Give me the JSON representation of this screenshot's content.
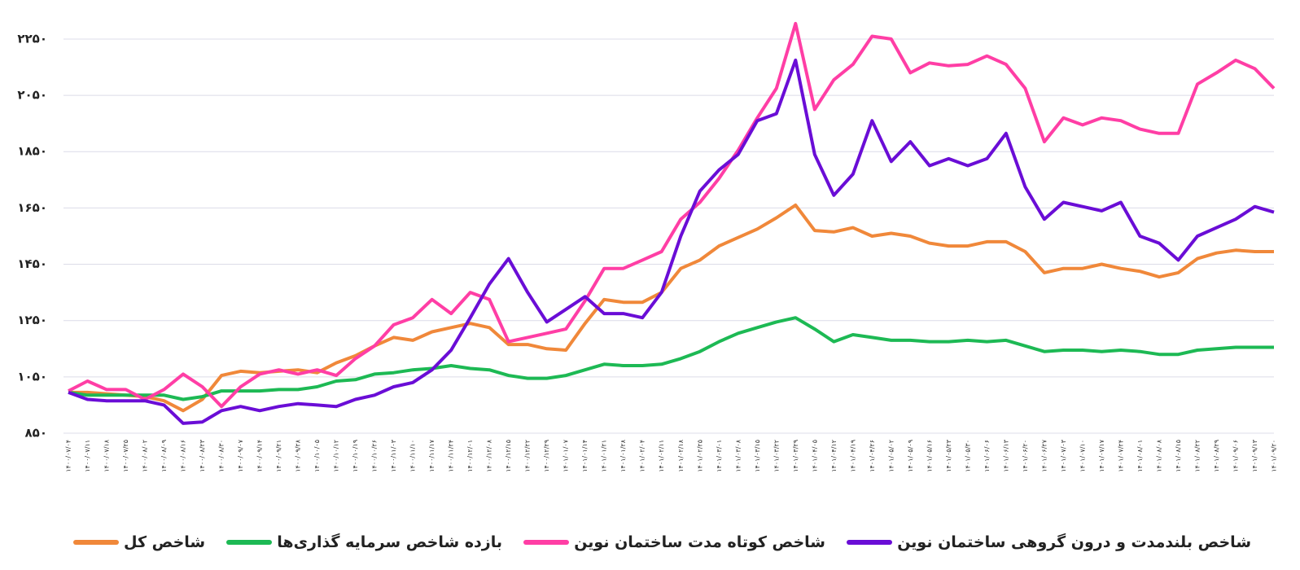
{
  "chart_data": {
    "type": "line",
    "categories": [
      "۱۴۰۰/۰۷/۰۴",
      "۱۴۰۰/۰۷/۱۱",
      "۱۴۰۰/۰۷/۱۸",
      "۱۴۰۰/۰۷/۲۵",
      "۱۴۰۰/۰۸/۰۲",
      "۱۴۰۰/۰۸/۰۹",
      "۱۴۰۰/۰۸/۱۶",
      "۱۴۰۰/۰۸/۲۳",
      "۱۴۰۰/۰۸/۳۰",
      "۱۴۰۰/۰۹/۰۷",
      "۱۴۰۰/۰۹/۱۴",
      "۱۴۰۰/۰۹/۲۱",
      "۱۴۰۰/۰۹/۲۸",
      "۱۴۰۰/۱۰/۰۵",
      "۱۴۰۰/۱۰/۱۲",
      "۱۴۰۰/۱۰/۱۹",
      "۱۴۰۰/۱۰/۲۶",
      "۱۴۰۰/۱۱/۰۳",
      "۱۴۰۰/۱۱/۱۰",
      "۱۴۰۰/۱۱/۱۷",
      "۱۴۰۰/۱۱/۲۴",
      "۱۴۰۰/۱۲/۰۱",
      "۱۴۰۰/۱۲/۰۸",
      "۱۴۰۰/۱۲/۱۵",
      "۱۴۰۰/۱۲/۲۲",
      "۱۴۰۰/۱۲/۲۹",
      "۱۴۰۱/۰۱/۰۷",
      "۱۴۰۱/۰۱/۱۴",
      "۱۴۰۱/۰۱/۲۱",
      "۱۴۰۱/۰۱/۲۸",
      "۱۴۰۱/۰۲/۰۴",
      "۱۴۰۱/۰۲/۱۱",
      "۱۴۰۱/۰۲/۱۸",
      "۱۴۰۱/۰۲/۲۵",
      "۱۴۰۱/۰۳/۰۱",
      "۱۴۰۱/۰۳/۰۸",
      "۱۴۰۱/۰۳/۱۵",
      "۱۴۰۱/۰۳/۲۲",
      "۱۴۰۱/۰۳/۲۹",
      "۱۴۰۱/۰۴/۰۵",
      "۱۴۰۱/۰۴/۱۲",
      "۱۴۰۱/۰۴/۱۹",
      "۱۴۰۱/۰۴/۲۶",
      "۱۴۰۱/۰۵/۰۲",
      "۱۴۰۱/۰۵/۰۹",
      "۱۴۰۱/۰۵/۱۶",
      "۱۴۰۱/۰۵/۲۳",
      "۱۴۰۱/۰۵/۳۰",
      "۱۴۰۱/۰۶/۰۶",
      "۱۴۰۱/۰۶/۱۳",
      "۱۴۰۱/۰۶/۲۰",
      "۱۴۰۱/۰۶/۲۷",
      "۱۴۰۱/۰۷/۰۳",
      "۱۴۰۱/۰۷/۱۰",
      "۱۴۰۱/۰۷/۱۷",
      "۱۴۰۱/۰۷/۲۴",
      "۱۴۰۱/۰۸/۰۱",
      "۱۴۰۱/۰۸/۰۸",
      "۱۴۰۱/۰۸/۱۵",
      "۱۴۰۱/۰۸/۲۲",
      "۱۴۰۱/۰۸/۲۹",
      "۱۴۰۱/۰۹/۰۶",
      "۱۴۰۱/۰۹/۱۳",
      "۱۴۰۱/۰۹/۲۰"
    ],
    "series": [
      {
        "name": "شاخص بلندمدت و درون گروهی ساختمان نوین",
        "color": "#6a0dd6",
        "values": [
          995,
          970,
          965,
          965,
          965,
          950,
          885,
          890,
          930,
          945,
          930,
          945,
          955,
          950,
          945,
          970,
          985,
          1015,
          1030,
          1075,
          1145,
          1260,
          1380,
          1470,
          1350,
          1245,
          1290,
          1335,
          1275,
          1275,
          1260,
          1350,
          1550,
          1710,
          1785,
          1840,
          1960,
          1985,
          2175,
          1840,
          1695,
          1770,
          1960,
          1815,
          1885,
          1800,
          1825,
          1800,
          1825,
          1915,
          1725,
          1610,
          1670,
          1655,
          1640,
          1670,
          1550,
          1525,
          1465,
          1550,
          1580,
          1610,
          1655,
          1635
        ]
      },
      {
        "name": "شاخص کوتاه مدت ساختمان نوین",
        "color": "#ff3ea5",
        "values": [
          1000,
          1035,
          1005,
          1005,
          970,
          1005,
          1060,
          1015,
          945,
          1015,
          1060,
          1075,
          1060,
          1075,
          1055,
          1115,
          1160,
          1235,
          1260,
          1325,
          1275,
          1350,
          1325,
          1175,
          1190,
          1205,
          1220,
          1320,
          1435,
          1435,
          1465,
          1495,
          1610,
          1670,
          1755,
          1855,
          1970,
          2075,
          2305,
          2000,
          2105,
          2160,
          2260,
          2250,
          2130,
          2165,
          2155,
          2160,
          2190,
          2160,
          2075,
          1885,
          1970,
          1945,
          1970,
          1960,
          1930,
          1915,
          1915,
          2090,
          2130,
          2175,
          2145,
          2075
        ]
      },
      {
        "name": "بازده  شاخص سرمایه گذاری‌ها",
        "color": "#1db954",
        "values": [
          995,
          985,
          985,
          985,
          985,
          985,
          970,
          980,
          1000,
          1000,
          1000,
          1005,
          1005,
          1015,
          1035,
          1040,
          1060,
          1065,
          1075,
          1080,
          1090,
          1080,
          1075,
          1055,
          1045,
          1045,
          1055,
          1075,
          1095,
          1090,
          1090,
          1095,
          1115,
          1140,
          1175,
          1205,
          1225,
          1245,
          1260,
          1220,
          1175,
          1200,
          1190,
          1180,
          1180,
          1175,
          1175,
          1180,
          1175,
          1180,
          1160,
          1140,
          1145,
          1145,
          1140,
          1145,
          1140,
          1130,
          1130,
          1145,
          1150,
          1155,
          1155,
          1155
        ]
      },
      {
        "name": "شاخص کل",
        "color": "#f0883a",
        "values": [
          995,
          995,
          990,
          985,
          980,
          965,
          930,
          970,
          1055,
          1070,
          1065,
          1070,
          1075,
          1065,
          1100,
          1125,
          1160,
          1190,
          1180,
          1210,
          1225,
          1240,
          1225,
          1165,
          1165,
          1150,
          1145,
          1240,
          1325,
          1315,
          1315,
          1350,
          1435,
          1465,
          1515,
          1545,
          1575,
          1615,
          1660,
          1570,
          1565,
          1580,
          1550,
          1560,
          1550,
          1525,
          1515,
          1515,
          1530,
          1530,
          1495,
          1420,
          1435,
          1435,
          1450,
          1435,
          1425,
          1405,
          1420,
          1470,
          1490,
          1500,
          1495,
          1495
        ]
      }
    ],
    "ylim": [
      850,
      2380
    ],
    "yticks": [
      {
        "value": 850,
        "label": "۸۵۰"
      },
      {
        "value": 1050,
        "label": "۱۰۵۰"
      },
      {
        "value": 1250,
        "label": "۱۲۵۰"
      },
      {
        "value": 1450,
        "label": "۱۴۵۰"
      },
      {
        "value": 1650,
        "label": "۱۶۵۰"
      },
      {
        "value": 1850,
        "label": "۱۸۵۰"
      },
      {
        "value": 2050,
        "label": "۲۰۵۰"
      },
      {
        "value": 2250,
        "label": "۲۲۵۰"
      }
    ],
    "grid": true,
    "legend": "bottom"
  }
}
